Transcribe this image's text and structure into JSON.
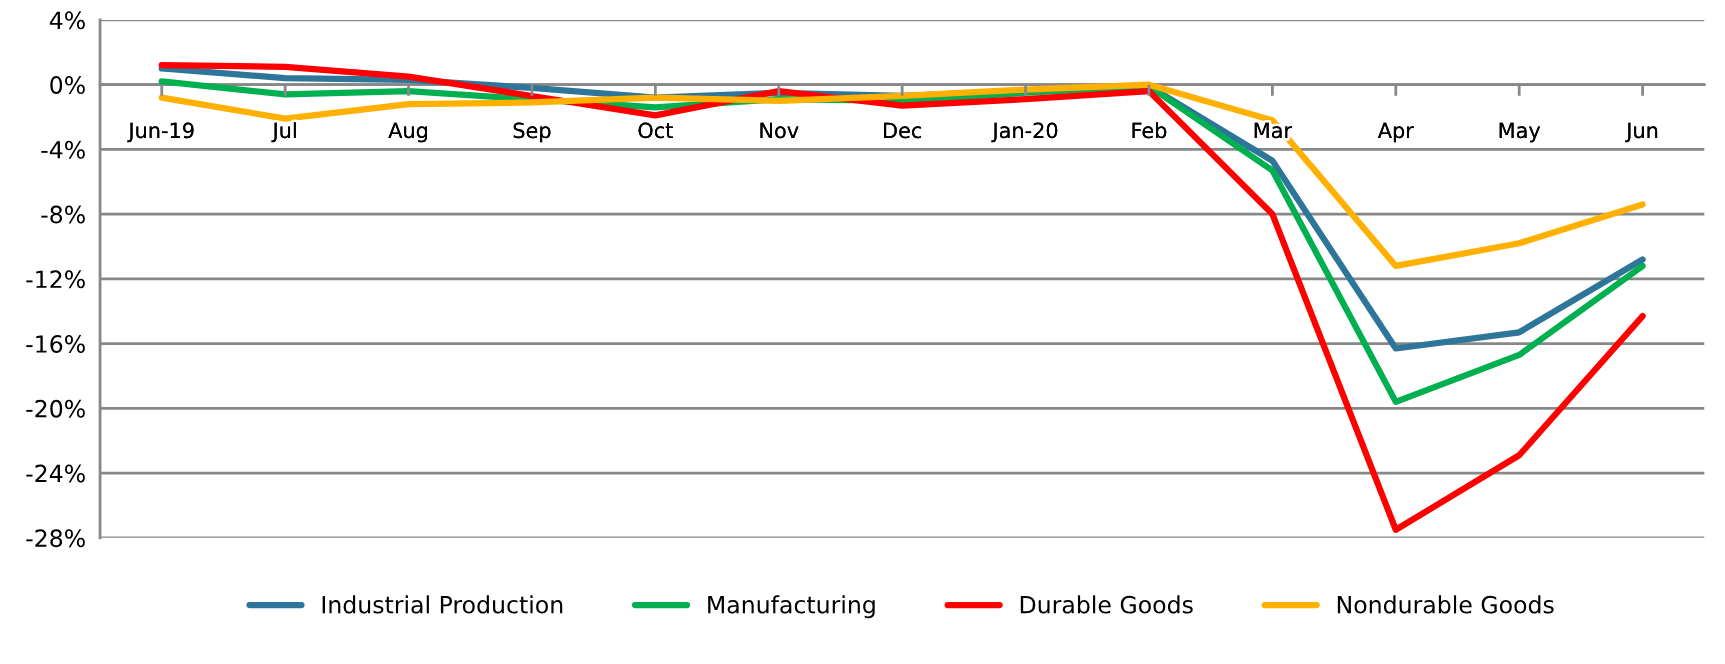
{
  "chart_data": {
    "type": "line",
    "categories": [
      "Jun-19",
      "Jul",
      "Aug",
      "Sep",
      "Oct",
      "Nov",
      "Dec",
      "Jan-20",
      "Feb",
      "Mar",
      "Apr",
      "May",
      "Jun"
    ],
    "series": [
      {
        "name": "Industrial Production",
        "color": "#2e7699",
        "values": [
          1.0,
          0.4,
          0.3,
          -0.2,
          -0.8,
          -0.5,
          -0.7,
          -0.4,
          -0.1,
          -4.7,
          -16.3,
          -15.3,
          -10.8
        ]
      },
      {
        "name": "Manufacturing",
        "color": "#00b050",
        "values": [
          0.2,
          -0.6,
          -0.4,
          -0.9,
          -1.4,
          -0.9,
          -1.0,
          -0.5,
          -0.1,
          -5.3,
          -19.6,
          -16.7,
          -11.2
        ]
      },
      {
        "name": "Durable Goods",
        "color": "#ff0000",
        "values": [
          1.2,
          1.1,
          0.5,
          -0.7,
          -1.9,
          -0.4,
          -1.3,
          -0.9,
          -0.4,
          -8.0,
          -27.5,
          -22.9,
          -14.3
        ]
      },
      {
        "name": "Nondurable Goods",
        "color": "#ffb000",
        "values": [
          -0.8,
          -2.1,
          -1.2,
          -1.1,
          -0.8,
          -1.0,
          -0.7,
          -0.3,
          0.0,
          -2.2,
          -11.2,
          -9.8,
          -7.4
        ]
      }
    ],
    "ylim": [
      -28,
      4
    ],
    "yticks": [
      {
        "value": 4,
        "label": "4%"
      },
      {
        "value": 0,
        "label": "0%"
      },
      {
        "value": -4,
        "label": "-4%"
      },
      {
        "value": -8,
        "label": "-8%"
      },
      {
        "value": -12,
        "label": "-12%"
      },
      {
        "value": -16,
        "label": "-16%"
      },
      {
        "value": -20,
        "label": "-20%"
      },
      {
        "value": -24,
        "label": "-24%"
      },
      {
        "value": -28,
        "label": "-28%"
      }
    ],
    "grid": "y",
    "legend": "bottom",
    "marker": "none",
    "line_style": "solid"
  }
}
